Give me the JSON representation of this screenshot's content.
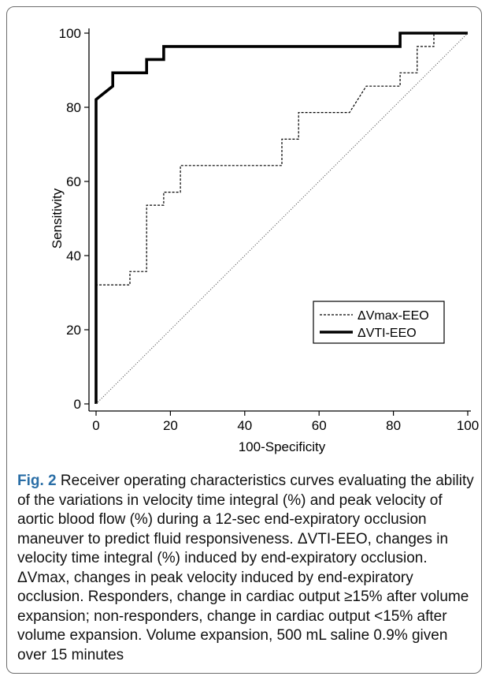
{
  "chart_data": {
    "type": "line",
    "title": "",
    "xlabel": "100-Specificity",
    "ylabel": "Sensitivity",
    "xlim": [
      0,
      100
    ],
    "ylim": [
      0,
      100
    ],
    "xticks": [
      0,
      20,
      40,
      60,
      80,
      100
    ],
    "yticks": [
      0,
      20,
      40,
      60,
      80,
      100
    ],
    "legend_position": "lower-right",
    "series": [
      {
        "name": "ΔVmax-EEO",
        "style": "dashed",
        "color": "#000000",
        "x": [
          0,
          0,
          9.1,
          9.1,
          13.6,
          13.6,
          18.2,
          18.2,
          22.7,
          22.7,
          27.3,
          31.8,
          36.4,
          40.9,
          45.5,
          50,
          50,
          54.5,
          54.5,
          59.1,
          63.6,
          68.2,
          72.7,
          72.7,
          77.3,
          81.8,
          81.8,
          86.4,
          86.4,
          90.9,
          90.9,
          100
        ],
        "y": [
          0,
          32.1,
          32.1,
          35.7,
          35.7,
          53.6,
          53.6,
          57.1,
          57.1,
          64.3,
          64.3,
          64.3,
          64.3,
          64.3,
          64.3,
          64.3,
          71.4,
          71.4,
          78.6,
          78.6,
          78.6,
          78.6,
          85.7,
          85.7,
          85.7,
          85.7,
          89.3,
          89.3,
          96.4,
          96.4,
          100,
          100
        ]
      },
      {
        "name": "ΔVTI-EEO",
        "style": "solid",
        "color": "#000000",
        "x": [
          0,
          0,
          4.5,
          4.5,
          9.1,
          13.6,
          13.6,
          18.2,
          18.2,
          22.7,
          81.8,
          81.8,
          100
        ],
        "y": [
          0,
          82.1,
          85.7,
          89.3,
          89.3,
          89.3,
          92.9,
          92.9,
          96.4,
          96.4,
          96.4,
          100,
          100
        ]
      },
      {
        "name": "",
        "style": "dotted",
        "color": "#555555",
        "x": [
          0,
          100
        ],
        "y": [
          0,
          100
        ]
      }
    ]
  },
  "caption": {
    "label": "Fig. 2",
    "text": " Receiver operating characteristics curves evaluating the ability of the variations in velocity time integral (%) and peak velocity of aortic blood flow (%) during a 12-sec end-expiratory occlusion maneuver to predict fluid responsiveness. ΔVTI-EEO, changes in velocity time integral (%) induced by end-expiratory occlusion. ΔVmax, changes in peak velocity induced by end-expiratory occlusion. Responders, change in cardiac output ≥15% after volume expansion; non-responders, change in cardiac output <15% after volume expansion. Volume expansion, 500 mL saline 0.9% given over 15 minutes"
  }
}
